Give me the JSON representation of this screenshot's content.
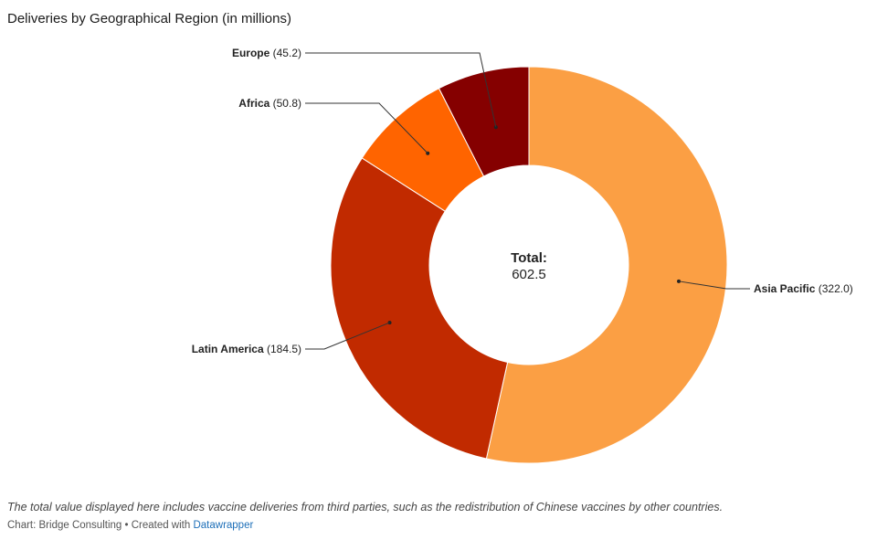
{
  "title": "Deliveries by Geographical Region (in millions)",
  "chart_data": {
    "type": "pie",
    "title": "Deliveries by Geographical Region (in millions)",
    "center_label": "Total:",
    "center_value": "602.5",
    "slices": [
      {
        "name": "Asia Pacific",
        "value": 322.0,
        "display": "(322.0)",
        "color": "#fb9f44"
      },
      {
        "name": "Latin America",
        "value": 184.5,
        "display": "(184.5)",
        "color": "#c12a00"
      },
      {
        "name": "Africa",
        "value": 50.8,
        "display": "(50.8)",
        "color": "#ff6400"
      },
      {
        "name": "Europe",
        "value": 45.2,
        "display": "(45.2)",
        "color": "#850000"
      }
    ]
  },
  "footer": {
    "note": "The total value displayed here includes vaccine deliveries from third parties, such as the redistribution of Chinese vaccines by other countries.",
    "credit_prefix": "Chart: Bridge Consulting • Created with ",
    "credit_link": "Datawrapper"
  }
}
